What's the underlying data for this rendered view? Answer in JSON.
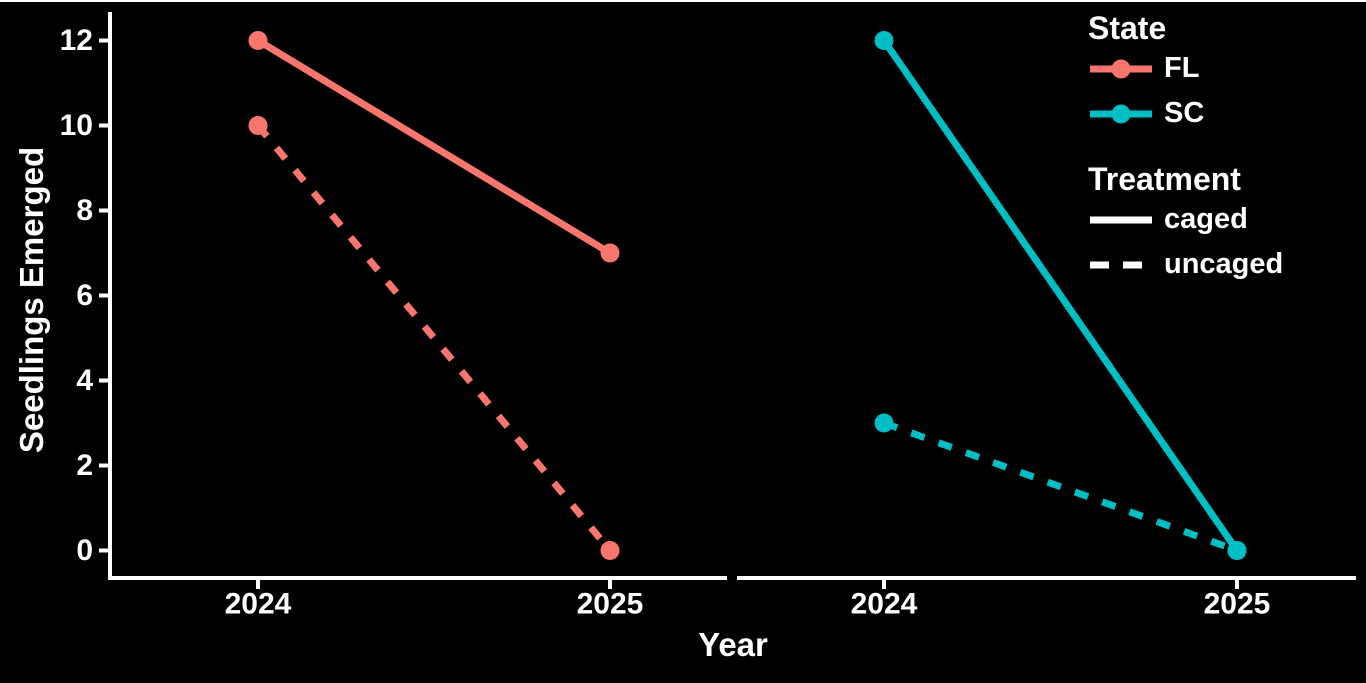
{
  "figure": {
    "background": "#000000",
    "text_color": "#ffffff",
    "axis_color": "#ffffff",
    "top_border_color": "#ffffff"
  },
  "chart_data": {
    "type": "line",
    "title": "",
    "xlabel": "Year",
    "ylabel": "Seedlings Emerged",
    "x_categories": [
      "2024",
      "2025"
    ],
    "y_ticks": [
      0,
      2,
      4,
      6,
      8,
      10,
      12
    ],
    "ylim": [
      0,
      12
    ],
    "grid": false,
    "legend_position": "top-right",
    "facets": [
      {
        "state": "FL",
        "color": "#F8766D",
        "series": [
          {
            "treatment": "caged",
            "linetype": "solid",
            "x": [
              "2024",
              "2025"
            ],
            "values": [
              12,
              7
            ]
          },
          {
            "treatment": "uncaged",
            "linetype": "dashed",
            "x": [
              "2024",
              "2025"
            ],
            "values": [
              10,
              0
            ]
          }
        ]
      },
      {
        "state": "SC",
        "color": "#00BFC4",
        "series": [
          {
            "treatment": "caged",
            "linetype": "solid",
            "x": [
              "2024",
              "2025"
            ],
            "values": [
              12,
              0
            ]
          },
          {
            "treatment": "uncaged",
            "linetype": "dashed",
            "x": [
              "2024",
              "2025"
            ],
            "values": [
              3,
              0
            ]
          }
        ]
      }
    ]
  },
  "legend": {
    "state": {
      "title": "State",
      "items": [
        {
          "label": "FL",
          "color": "#F8766D"
        },
        {
          "label": "SC",
          "color": "#00BFC4"
        }
      ]
    },
    "treatment": {
      "title": "Treatment",
      "color": "#FFFFFF",
      "items": [
        {
          "label": "caged",
          "linetype": "solid"
        },
        {
          "label": "uncaged",
          "linetype": "dashed"
        }
      ]
    }
  }
}
